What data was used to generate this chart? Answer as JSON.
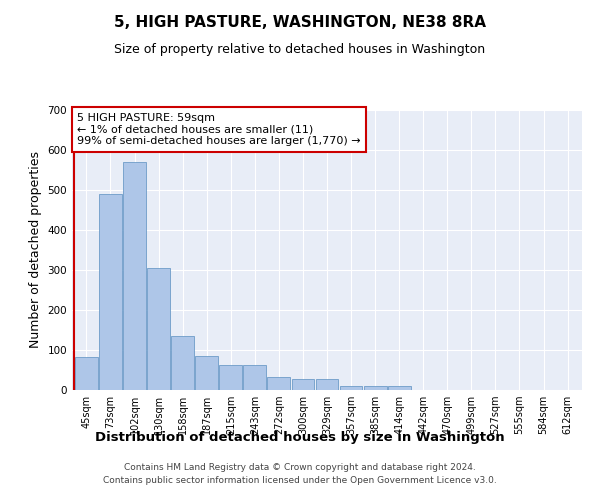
{
  "title": "5, HIGH PASTURE, WASHINGTON, NE38 8RA",
  "subtitle": "Size of property relative to detached houses in Washington",
  "xlabel": "Distribution of detached houses by size in Washington",
  "ylabel": "Number of detached properties",
  "footer_line1": "Contains HM Land Registry data © Crown copyright and database right 2024.",
  "footer_line2": "Contains public sector information licensed under the Open Government Licence v3.0.",
  "bar_labels": [
    "45sqm",
    "73sqm",
    "102sqm",
    "130sqm",
    "158sqm",
    "187sqm",
    "215sqm",
    "243sqm",
    "272sqm",
    "300sqm",
    "329sqm",
    "357sqm",
    "385sqm",
    "414sqm",
    "442sqm",
    "470sqm",
    "499sqm",
    "527sqm",
    "555sqm",
    "584sqm",
    "612sqm"
  ],
  "bar_values": [
    83,
    490,
    570,
    305,
    135,
    85,
    63,
    63,
    33,
    28,
    28,
    10,
    10,
    10,
    0,
    0,
    0,
    0,
    0,
    0,
    0
  ],
  "bar_color": "#aec6e8",
  "bar_edge_color": "#5a8fc0",
  "ylim": [
    0,
    700
  ],
  "yticks": [
    0,
    100,
    200,
    300,
    400,
    500,
    600,
    700
  ],
  "annotation_text": "5 HIGH PASTURE: 59sqm\n← 1% of detached houses are smaller (11)\n99% of semi-detached houses are larger (1,770) →",
  "annotation_box_color": "#ffffff",
  "annotation_box_edge_color": "#cc0000",
  "marker_line_color": "#cc0000",
  "background_color": "#e8edf7",
  "grid_color": "#ffffff",
  "title_fontsize": 11,
  "subtitle_fontsize": 9,
  "axis_label_fontsize": 9,
  "tick_fontsize": 7,
  "footer_fontsize": 6.5,
  "annotation_fontsize": 8
}
